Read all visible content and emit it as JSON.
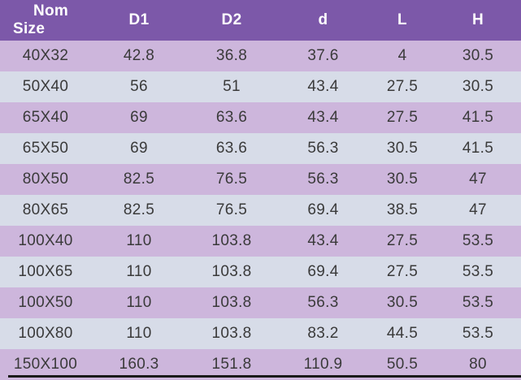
{
  "table": {
    "columns": [
      {
        "label": "Nom\nSize"
      },
      {
        "label": "D1"
      },
      {
        "label": "D2"
      },
      {
        "label": "d"
      },
      {
        "label": "L"
      },
      {
        "label": "H"
      }
    ],
    "rows": [
      [
        "40X32",
        "42.8",
        "36.8",
        "37.6",
        "4",
        "30.5"
      ],
      [
        "50X40",
        "56",
        "51",
        "43.4",
        "27.5",
        "30.5"
      ],
      [
        "65X40",
        "69",
        "63.6",
        "43.4",
        "27.5",
        "41.5"
      ],
      [
        "65X50",
        "69",
        "63.6",
        "56.3",
        "30.5",
        "41.5"
      ],
      [
        "80X50",
        "82.5",
        "76.5",
        "56.3",
        "30.5",
        "47"
      ],
      [
        "80X65",
        "82.5",
        "76.5",
        "69.4",
        "38.5",
        "47"
      ],
      [
        "100X40",
        "110",
        "103.8",
        "43.4",
        "27.5",
        "53.5"
      ],
      [
        "100X65",
        "110",
        "103.8",
        "69.4",
        "27.5",
        "53.5"
      ],
      [
        "100X50",
        "110",
        "103.8",
        "56.3",
        "30.5",
        "53.5"
      ],
      [
        "100X80",
        "110",
        "103.8",
        "83.2",
        "44.5",
        "53.5"
      ],
      [
        "150X100",
        "160.3",
        "151.8",
        "110.9",
        "50.5",
        "80"
      ]
    ]
  },
  "colors": {
    "header_bg": "#7C58A9",
    "header_text": "#FFFFFF",
    "row_odd_bg": "#CDB6DC",
    "row_even_bg": "#D7DCE8",
    "cell_text": "#3A3A3A",
    "bottom_rule": "#1A1A1A"
  },
  "chart_data": {
    "type": "table",
    "title": "",
    "columns": [
      "Nom Size",
      "D1",
      "D2",
      "d",
      "L",
      "H"
    ],
    "rows": [
      [
        "40X32",
        42.8,
        36.8,
        37.6,
        4,
        30.5
      ],
      [
        "50X40",
        56,
        51,
        43.4,
        27.5,
        30.5
      ],
      [
        "65X40",
        69,
        63.6,
        43.4,
        27.5,
        41.5
      ],
      [
        "65X50",
        69,
        63.6,
        56.3,
        30.5,
        41.5
      ],
      [
        "80X50",
        82.5,
        76.5,
        56.3,
        30.5,
        47
      ],
      [
        "80X65",
        82.5,
        76.5,
        69.4,
        38.5,
        47
      ],
      [
        "100X40",
        110,
        103.8,
        43.4,
        27.5,
        53.5
      ],
      [
        "100X65",
        110,
        103.8,
        69.4,
        27.5,
        53.5
      ],
      [
        "100X50",
        110,
        103.8,
        56.3,
        30.5,
        53.5
      ],
      [
        "100X80",
        110,
        103.8,
        83.2,
        44.5,
        53.5
      ],
      [
        "150X100",
        160.3,
        151.8,
        110.9,
        50.5,
        80
      ]
    ]
  }
}
